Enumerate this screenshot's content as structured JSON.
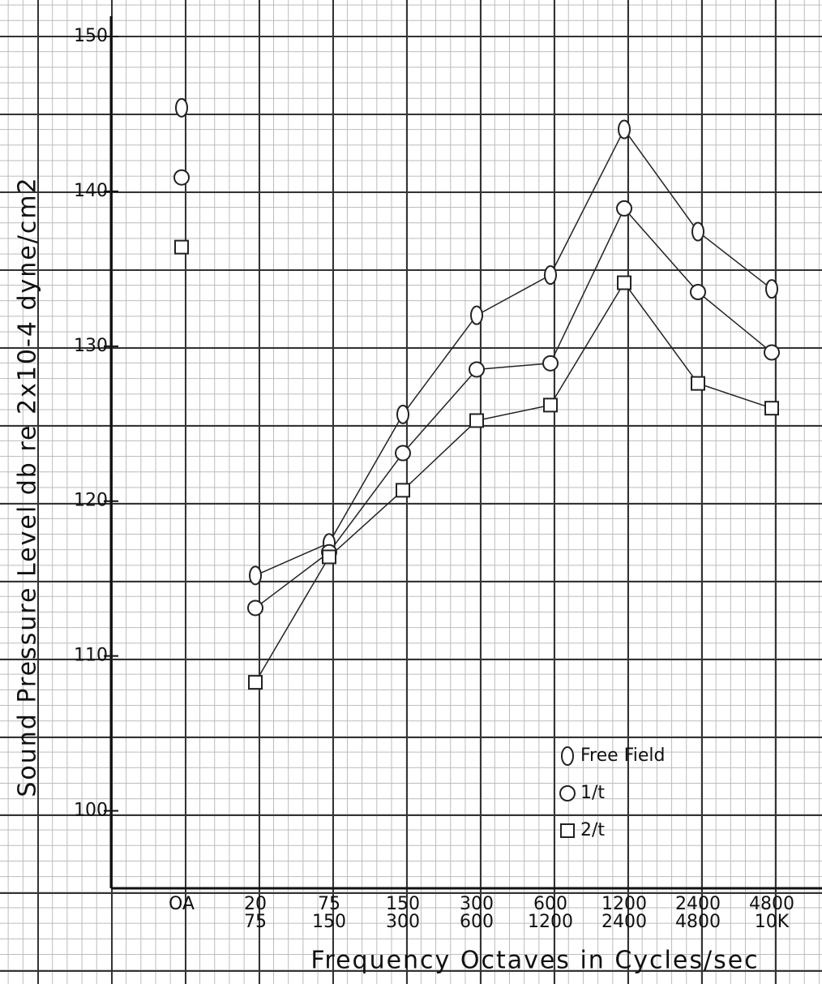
{
  "chart_data": {
    "type": "line",
    "y_label": "Sound Pressure Level db re 2x10-4 dyne/cm2",
    "x_label": "Frequency Octaves in Cycles/sec",
    "categories": [
      [
        "OA"
      ],
      [
        "20",
        "75"
      ],
      [
        "75",
        "150"
      ],
      [
        "150",
        "300"
      ],
      [
        "300",
        "600"
      ],
      [
        "600",
        "1200"
      ],
      [
        "1200",
        "2400"
      ],
      [
        "2400",
        "4800"
      ],
      [
        "4800",
        "10K"
      ]
    ],
    "series": [
      {
        "name": "Free Field",
        "marker": "oval",
        "color": "#222222",
        "values": [
          145.4,
          115.2,
          117.3,
          125.6,
          132.0,
          134.6,
          144.0,
          137.4,
          133.7
        ]
      },
      {
        "name": "1/t",
        "marker": "circle",
        "color": "#222222",
        "values": [
          140.9,
          113.1,
          116.7,
          123.1,
          128.5,
          128.9,
          138.9,
          133.5,
          129.6
        ]
      },
      {
        "name": "2/t",
        "marker": "square",
        "color": "#222222",
        "values": [
          136.4,
          108.3,
          116.4,
          120.7,
          125.2,
          126.2,
          134.1,
          127.6,
          126.0
        ]
      }
    ],
    "ylim": [
      95,
      150
    ],
    "yticks": [
      100,
      110,
      120,
      130,
      140,
      150
    ],
    "legend": "lower right"
  }
}
